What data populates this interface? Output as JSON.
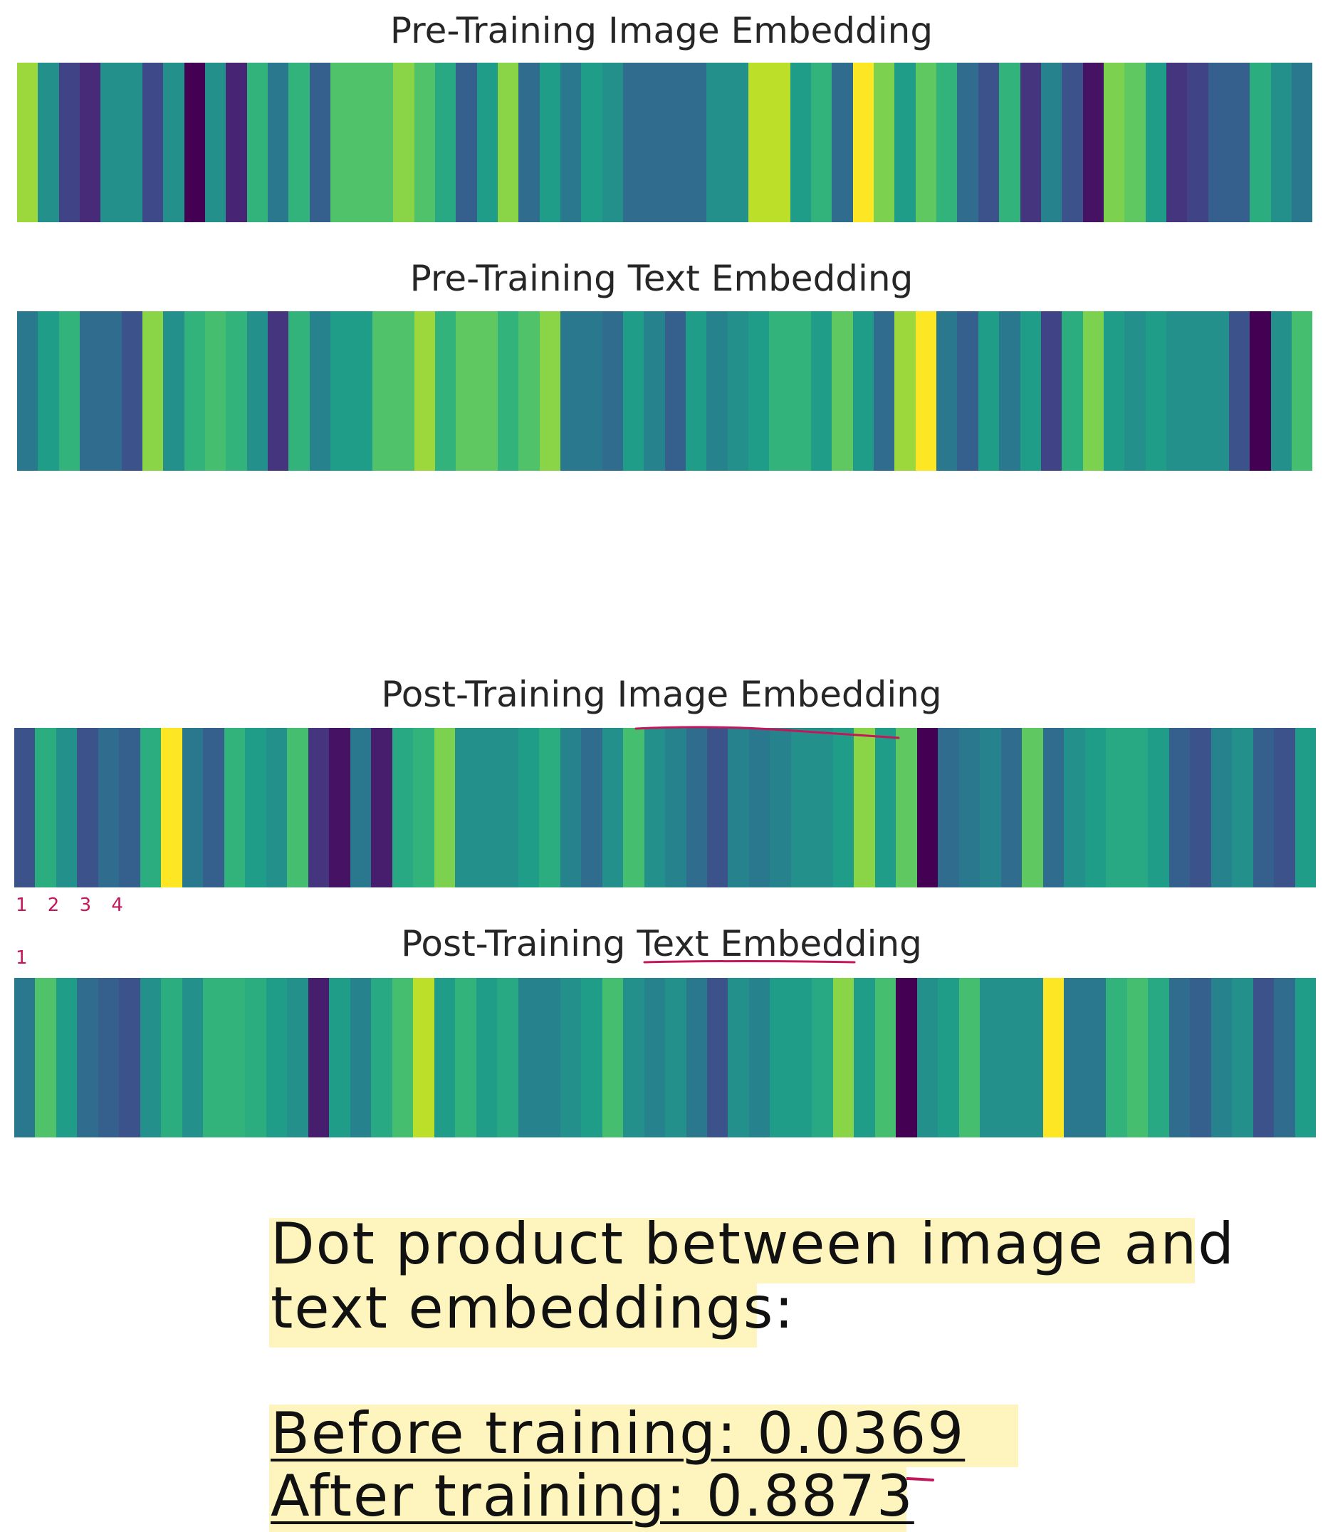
{
  "chart_data": [
    {
      "type": "heatmap",
      "title": "Pre-Training Image Embedding",
      "values": [
        0.85,
        0.5,
        0.2,
        0.12,
        0.5,
        0.5,
        0.22,
        0.5,
        0.0,
        0.5,
        0.1,
        0.65,
        0.4,
        0.65,
        0.3,
        0.72,
        0.72,
        0.72,
        0.82,
        0.72,
        0.6,
        0.3,
        0.55,
        0.82,
        0.35,
        0.55,
        0.4,
        0.55,
        0.5,
        0.35,
        0.35,
        0.35,
        0.35,
        0.5,
        0.5,
        0.9,
        0.9,
        0.55,
        0.65,
        0.35,
        1.0,
        0.8,
        0.55,
        0.75,
        0.65,
        0.35,
        0.25,
        0.65,
        0.15,
        0.45,
        0.25,
        0.05,
        0.8,
        0.75,
        0.55,
        0.15,
        0.2,
        0.3,
        0.3,
        0.62,
        0.5,
        0.4
      ]
    },
    {
      "type": "heatmap",
      "title": "Pre-Training Text Embedding",
      "values": [
        0.4,
        0.55,
        0.65,
        0.35,
        0.35,
        0.25,
        0.82,
        0.5,
        0.65,
        0.7,
        0.65,
        0.5,
        0.15,
        0.65,
        0.45,
        0.55,
        0.55,
        0.72,
        0.72,
        0.85,
        0.65,
        0.75,
        0.75,
        0.65,
        0.72,
        0.82,
        0.4,
        0.4,
        0.35,
        0.55,
        0.45,
        0.3,
        0.55,
        0.45,
        0.5,
        0.55,
        0.65,
        0.65,
        0.55,
        0.75,
        0.55,
        0.35,
        0.85,
        1.0,
        0.4,
        0.3,
        0.55,
        0.4,
        0.55,
        0.2,
        0.62,
        0.8,
        0.55,
        0.5,
        0.55,
        0.5,
        0.5,
        0.5,
        0.25,
        0.0,
        0.5,
        0.7
      ]
    },
    {
      "type": "heatmap",
      "title": "Post-Training Image Embedding",
      "values": [
        0.25,
        0.62,
        0.5,
        0.25,
        0.35,
        0.3,
        0.62,
        1.0,
        0.4,
        0.3,
        0.65,
        0.55,
        0.5,
        0.7,
        0.15,
        0.05,
        0.4,
        0.08,
        0.6,
        0.65,
        0.8,
        0.5,
        0.5,
        0.5,
        0.55,
        0.62,
        0.45,
        0.35,
        0.5,
        0.7,
        0.5,
        0.45,
        0.35,
        0.25,
        0.45,
        0.4,
        0.45,
        0.5,
        0.5,
        0.55,
        0.82,
        0.55,
        0.75,
        0.0,
        0.35,
        0.4,
        0.45,
        0.35,
        0.75,
        0.35,
        0.5,
        0.55,
        0.6,
        0.6,
        0.55,
        0.3,
        0.25,
        0.45,
        0.5,
        0.3,
        0.25,
        0.55
      ]
    },
    {
      "type": "heatmap",
      "title": "Post-Training Text Embedding",
      "values": [
        0.4,
        0.72,
        0.55,
        0.35,
        0.3,
        0.25,
        0.5,
        0.62,
        0.5,
        0.65,
        0.65,
        0.62,
        0.55,
        0.5,
        0.08,
        0.55,
        0.45,
        0.6,
        0.7,
        0.9,
        0.55,
        0.65,
        0.55,
        0.6,
        0.45,
        0.45,
        0.5,
        0.55,
        0.7,
        0.5,
        0.45,
        0.5,
        0.4,
        0.25,
        0.5,
        0.45,
        0.55,
        0.55,
        0.6,
        0.82,
        0.55,
        0.7,
        0.0,
        0.5,
        0.55,
        0.7,
        0.5,
        0.5,
        0.5,
        1.0,
        0.4,
        0.4,
        0.65,
        0.7,
        0.6,
        0.35,
        0.3,
        0.45,
        0.5,
        0.25,
        0.35,
        0.55
      ]
    }
  ],
  "colormap": "viridis",
  "annotations": {
    "ticks_top": "1 2 3 4",
    "tick_one": "1",
    "note_line1": "Dot product between image and",
    "note_line2": "text embeddings:",
    "before": "Before training: 0.0369",
    "after": "After training: 0.8873",
    "ink_color": "#111111",
    "highlight_color": "#fdf5bd",
    "pen_color": "#c2185b"
  }
}
